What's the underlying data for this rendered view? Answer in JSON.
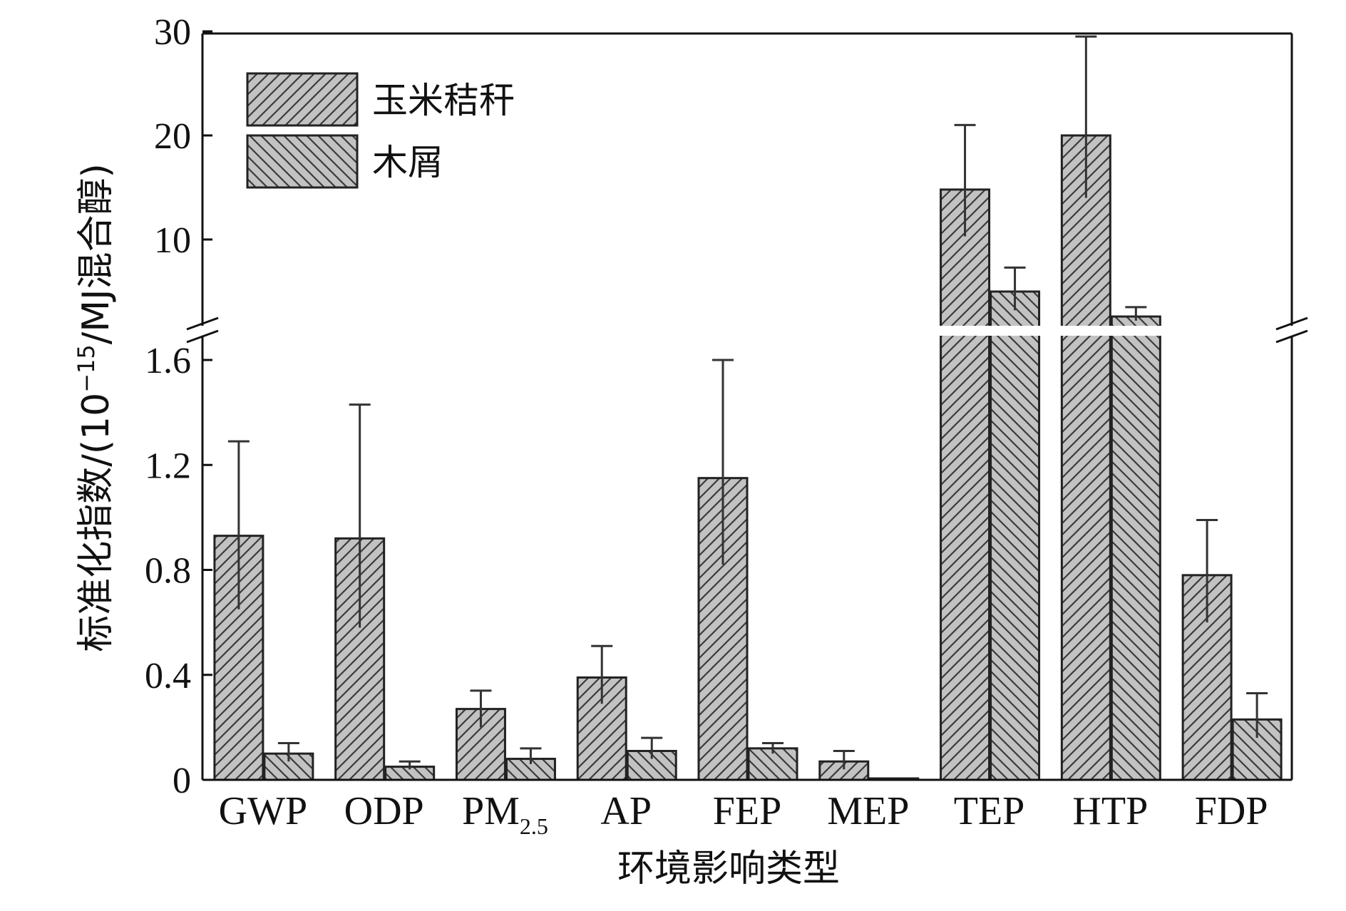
{
  "chart_data": {
    "type": "bar",
    "broken_axis": true,
    "categories": [
      "GWP",
      "ODP",
      "PM",
      "AP",
      "FEP",
      "MEP",
      "TEP",
      "HTP",
      "FDP"
    ],
    "category_subscripts": [
      "",
      "",
      "2.5",
      "",
      "",
      "",
      "",
      "",
      ""
    ],
    "series": [
      {
        "name": "玉米秸秆",
        "color": "#bdbdbd",
        "hatch": "forward",
        "values": [
          0.93,
          0.92,
          0.27,
          0.39,
          1.15,
          0.07,
          14.8,
          20.0,
          0.78
        ],
        "err_high": [
          1.29,
          1.43,
          0.34,
          0.51,
          1.6,
          0.11,
          21.0,
          29.5,
          0.99
        ],
        "err_low": [
          0.65,
          0.58,
          0.2,
          0.29,
          0.82,
          0.04,
          10.3,
          14.0,
          0.6
        ]
      },
      {
        "name": "木屑",
        "color": "#bdbdbd",
        "hatch": "backward",
        "values": [
          0.1,
          0.05,
          0.08,
          0.11,
          0.12,
          0.005,
          5.0,
          2.6,
          0.23
        ],
        "err_high": [
          0.14,
          0.07,
          0.12,
          0.16,
          0.14,
          0.005,
          7.3,
          3.5,
          0.33
        ],
        "err_low": [
          0.07,
          0.04,
          0.06,
          0.08,
          0.1,
          0.005,
          3.2,
          2.2,
          0.16
        ]
      }
    ],
    "lower_axis": {
      "ylim": [
        0,
        1.6
      ],
      "ticks": [
        "0",
        "0.4",
        "0.8",
        "1.2",
        "1.6"
      ]
    },
    "upper_axis": {
      "ylim": [
        0,
        30
      ],
      "ticks": [
        "10",
        "20",
        "30"
      ]
    },
    "xlabel": "环境影响类型",
    "ylabel_prefix": "标准化指数/(10",
    "ylabel_exponent": "−15",
    "ylabel_suffix": "/MJ混合醇)",
    "legend_position": "top-left",
    "grid": false
  }
}
